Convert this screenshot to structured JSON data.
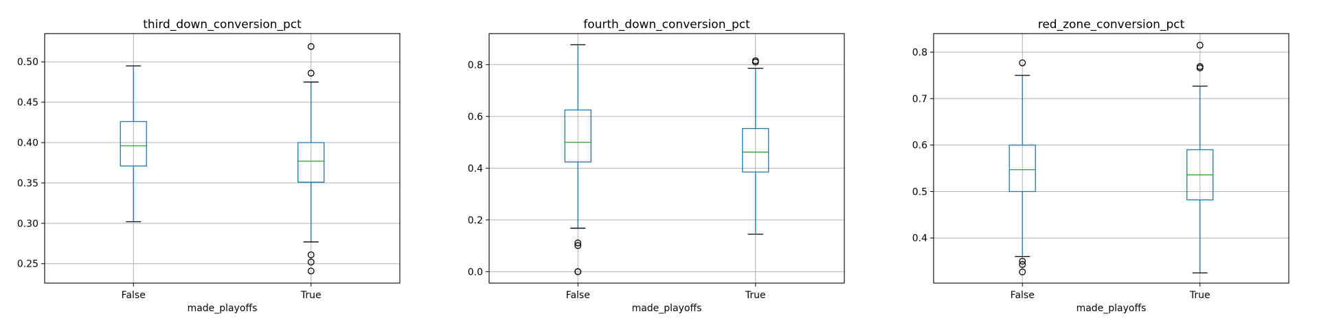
{
  "chart_data": [
    {
      "type": "box",
      "title": "third_down_conversion_pct",
      "xlabel": "made_playoffs",
      "ylabel": "",
      "categories": [
        "False",
        "True"
      ],
      "ylim": [
        0.226,
        0.535
      ],
      "yticks": [
        0.25,
        0.3,
        0.35,
        0.4,
        0.45,
        0.5
      ],
      "ytick_labels": [
        "0.25",
        "0.30",
        "0.35",
        "0.40",
        "0.45",
        "0.50"
      ],
      "grid": true,
      "boxes": [
        {
          "category": "False",
          "whisker_low": 0.302,
          "q1": 0.371,
          "median": 0.396,
          "q3": 0.426,
          "whisker_high": 0.495,
          "outliers": []
        },
        {
          "category": "True",
          "whisker_low": 0.277,
          "q1": 0.351,
          "median": 0.377,
          "q3": 0.4,
          "whisker_high": 0.475,
          "outliers": [
            0.519,
            0.486,
            0.261,
            0.252,
            0.241
          ]
        }
      ]
    },
    {
      "type": "box",
      "title": "fourth_down_conversion_pct",
      "xlabel": "made_playoffs",
      "ylabel": "",
      "categories": [
        "False",
        "True"
      ],
      "ylim": [
        -0.044,
        0.92
      ],
      "yticks": [
        0.0,
        0.2,
        0.4,
        0.6,
        0.8
      ],
      "ytick_labels": [
        "0.0",
        "0.2",
        "0.4",
        "0.6",
        "0.8"
      ],
      "grid": true,
      "boxes": [
        {
          "category": "False",
          "whisker_low": 0.168,
          "q1": 0.424,
          "median": 0.5,
          "q3": 0.625,
          "whisker_high": 0.877,
          "outliers": [
            0.111,
            0.101,
            0.0,
            0.0
          ]
        },
        {
          "category": "True",
          "whisker_low": 0.145,
          "q1": 0.385,
          "median": 0.462,
          "q3": 0.553,
          "whisker_high": 0.786,
          "outliers": [
            0.815,
            0.81
          ]
        }
      ]
    },
    {
      "type": "box",
      "title": "red_zone_conversion_pct",
      "xlabel": "made_playoffs",
      "ylabel": "",
      "categories": [
        "False",
        "True"
      ],
      "ylim": [
        0.303,
        0.84
      ],
      "yticks": [
        0.4,
        0.5,
        0.6,
        0.7,
        0.8
      ],
      "ytick_labels": [
        "0.4",
        "0.5",
        "0.6",
        "0.7",
        "0.8"
      ],
      "grid": true,
      "boxes": [
        {
          "category": "False",
          "whisker_low": 0.36,
          "q1": 0.5,
          "median": 0.547,
          "q3": 0.6,
          "whisker_high": 0.75,
          "outliers": [
            0.777,
            0.35,
            0.343,
            0.327
          ]
        },
        {
          "category": "True",
          "whisker_low": 0.325,
          "q1": 0.482,
          "median": 0.536,
          "q3": 0.59,
          "whisker_high": 0.727,
          "outliers": [
            0.815,
            0.769,
            0.766
          ]
        }
      ]
    }
  ],
  "colors": {
    "box": "#1f77b4",
    "median": "#2ca02c",
    "whisker_cap": "#000000",
    "outlier": "#000000",
    "grid": "#b0b0b0",
    "axes": "#000000"
  }
}
